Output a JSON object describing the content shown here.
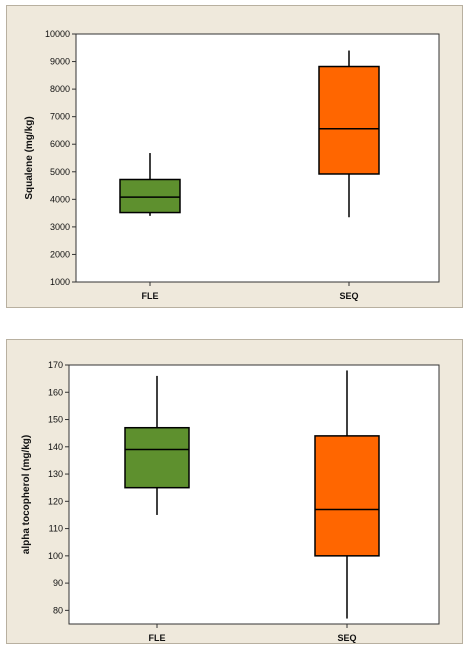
{
  "chart_data": [
    {
      "type": "box",
      "ylabel": "Squalene (mg/kg)",
      "ylim": [
        1000,
        10000
      ],
      "yticks": [
        1000,
        2000,
        3000,
        4000,
        5000,
        6000,
        7000,
        8000,
        9000,
        10000
      ],
      "categories": [
        "FLE",
        "SEQ"
      ],
      "boxes": [
        {
          "category": "FLE",
          "min": 3400,
          "q1": 3520,
          "median": 4080,
          "q3": 4720,
          "max": 5680,
          "color": "#5e902e"
        },
        {
          "category": "SEQ",
          "min": 3350,
          "q1": 4920,
          "median": 6560,
          "q3": 8820,
          "max": 9400,
          "color": "#ff6600"
        }
      ]
    },
    {
      "type": "box",
      "ylabel": "alpha tocopherol (mg/kg)",
      "ylim": [
        75,
        170
      ],
      "yticks": [
        80,
        90,
        100,
        110,
        120,
        130,
        140,
        150,
        160,
        170
      ],
      "categories": [
        "FLE",
        "SEQ"
      ],
      "boxes": [
        {
          "category": "FLE",
          "min": 115,
          "q1": 125,
          "median": 139,
          "q3": 147,
          "max": 166,
          "color": "#5e902e"
        },
        {
          "category": "SEQ",
          "min": 77,
          "q1": 100,
          "median": 117,
          "q3": 144,
          "max": 168,
          "color": "#ff6600"
        }
      ]
    }
  ]
}
